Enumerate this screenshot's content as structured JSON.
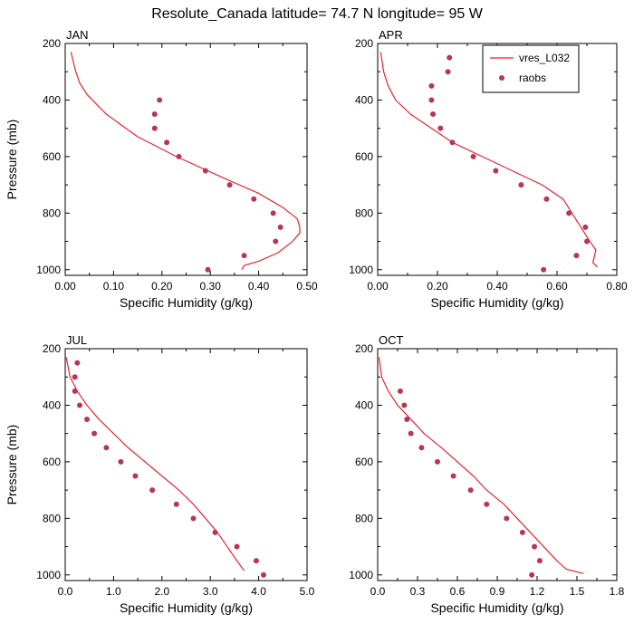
{
  "figure": {
    "title": "Resolute_Canada  latitude= 74.7 N longitude= 95 W"
  },
  "legend": {
    "entries": [
      {
        "name": "vres_L032",
        "style": "line",
        "color": "#e8232b"
      },
      {
        "name": "raobs",
        "style": "marker",
        "color": "#b8345a"
      }
    ],
    "placement": "top-right of APR panel"
  },
  "colors": {
    "model_line": "#e8232b",
    "obs_marker": "#b8345a",
    "axes": "#000000"
  },
  "chart_data": [
    {
      "type": "line",
      "panel": "JAN",
      "xlabel": "Specific Humidity (g/kg)",
      "ylabel": "Pressure (mb)",
      "xlim": [
        0,
        0.5
      ],
      "ylim": [
        200,
        1020
      ],
      "y_inverted": true,
      "xticks": [
        "0.00",
        "0.10",
        "0.20",
        "0.30",
        "0.40",
        "0.50"
      ],
      "xtick_values": [
        0,
        0.1,
        0.2,
        0.3,
        0.4,
        0.5
      ],
      "yticks": [
        "200",
        "400",
        "600",
        "800",
        "1000"
      ],
      "ytick_values": [
        200,
        400,
        600,
        800,
        1000
      ],
      "series": [
        {
          "name": "vres_L032",
          "points": [
            [
              0.012,
              230
            ],
            [
              0.016,
              260
            ],
            [
              0.022,
              300
            ],
            [
              0.03,
              340
            ],
            [
              0.045,
              380
            ],
            [
              0.085,
              450
            ],
            [
              0.15,
              530
            ],
            [
              0.23,
              600
            ],
            [
              0.32,
              670
            ],
            [
              0.4,
              730
            ],
            [
              0.45,
              780
            ],
            [
              0.48,
              820
            ],
            [
              0.485,
              850
            ],
            [
              0.485,
              870
            ],
            [
              0.47,
              900
            ],
            [
              0.44,
              940
            ],
            [
              0.4,
              970
            ],
            [
              0.37,
              985
            ],
            [
              0.365,
              1000
            ]
          ]
        },
        {
          "name": "raobs",
          "points": [
            [
              0.195,
              400
            ],
            [
              0.185,
              450
            ],
            [
              0.185,
              500
            ],
            [
              0.21,
              550
            ],
            [
              0.235,
              600
            ],
            [
              0.29,
              650
            ],
            [
              0.34,
              700
            ],
            [
              0.39,
              750
            ],
            [
              0.43,
              800
            ],
            [
              0.445,
              850
            ],
            [
              0.435,
              900
            ],
            [
              0.37,
              950
            ],
            [
              0.295,
              1000
            ]
          ]
        }
      ]
    },
    {
      "type": "line",
      "panel": "APR",
      "xlabel": "Specific Humidity (g/kg)",
      "ylabel": "",
      "xlim": [
        0,
        0.8
      ],
      "ylim": [
        200,
        1020
      ],
      "y_inverted": true,
      "xticks": [
        "0.00",
        "0.20",
        "0.40",
        "0.60",
        "0.80"
      ],
      "xtick_values": [
        0,
        0.2,
        0.4,
        0.6,
        0.8
      ],
      "yticks": [
        "200",
        "400",
        "600",
        "800",
        "1000"
      ],
      "ytick_values": [
        200,
        400,
        600,
        800,
        1000
      ],
      "series": [
        {
          "name": "vres_L032",
          "points": [
            [
              0.01,
              230
            ],
            [
              0.02,
              300
            ],
            [
              0.035,
              350
            ],
            [
              0.06,
              400
            ],
            [
              0.11,
              450
            ],
            [
              0.18,
              500
            ],
            [
              0.25,
              550
            ],
            [
              0.35,
              600
            ],
            [
              0.45,
              650
            ],
            [
              0.55,
              700
            ],
            [
              0.62,
              750
            ],
            [
              0.65,
              800
            ],
            [
              0.68,
              850
            ],
            [
              0.71,
              900
            ],
            [
              0.73,
              930
            ],
            [
              0.72,
              975
            ],
            [
              0.735,
              990
            ]
          ]
        },
        {
          "name": "raobs",
          "points": [
            [
              0.24,
              250
            ],
            [
              0.235,
              300
            ],
            [
              0.18,
              350
            ],
            [
              0.18,
              400
            ],
            [
              0.185,
              450
            ],
            [
              0.21,
              500
            ],
            [
              0.25,
              550
            ],
            [
              0.32,
              600
            ],
            [
              0.395,
              650
            ],
            [
              0.48,
              700
            ],
            [
              0.565,
              750
            ],
            [
              0.64,
              800
            ],
            [
              0.695,
              850
            ],
            [
              0.7,
              900
            ],
            [
              0.665,
              950
            ],
            [
              0.555,
              1000
            ]
          ]
        }
      ]
    },
    {
      "type": "line",
      "panel": "JUL",
      "xlabel": "Specific Humidity (g/kg)",
      "ylabel": "Pressure (mb)",
      "xlim": [
        0,
        5.0
      ],
      "ylim": [
        200,
        1020
      ],
      "y_inverted": true,
      "xticks": [
        "0.0",
        "1.0",
        "2.0",
        "3.0",
        "4.0",
        "5.0"
      ],
      "xtick_values": [
        0,
        1,
        2,
        3,
        4,
        5
      ],
      "yticks": [
        "200",
        "400",
        "600",
        "800",
        "1000"
      ],
      "ytick_values": [
        200,
        400,
        600,
        800,
        1000
      ],
      "series": [
        {
          "name": "vres_L032",
          "points": [
            [
              0.02,
              230
            ],
            [
              0.1,
              300
            ],
            [
              0.25,
              350
            ],
            [
              0.45,
              400
            ],
            [
              0.7,
              450
            ],
            [
              1.0,
              500
            ],
            [
              1.3,
              550
            ],
            [
              1.65,
              600
            ],
            [
              2.0,
              650
            ],
            [
              2.35,
              700
            ],
            [
              2.65,
              750
            ],
            [
              2.9,
              800
            ],
            [
              3.15,
              850
            ],
            [
              3.35,
              900
            ],
            [
              3.55,
              950
            ],
            [
              3.7,
              985
            ]
          ]
        },
        {
          "name": "raobs",
          "points": [
            [
              0.25,
              250
            ],
            [
              0.2,
              300
            ],
            [
              0.2,
              350
            ],
            [
              0.3,
              400
            ],
            [
              0.45,
              450
            ],
            [
              0.6,
              500
            ],
            [
              0.85,
              550
            ],
            [
              1.15,
              600
            ],
            [
              1.45,
              650
            ],
            [
              1.8,
              700
            ],
            [
              2.3,
              750
            ],
            [
              2.65,
              800
            ],
            [
              3.1,
              850
            ],
            [
              3.55,
              900
            ],
            [
              3.95,
              950
            ],
            [
              4.1,
              1000
            ]
          ]
        }
      ]
    },
    {
      "type": "line",
      "panel": "OCT",
      "xlabel": "Specific Humidity (g/kg)",
      "ylabel": "",
      "xlim": [
        0,
        1.8
      ],
      "ylim": [
        200,
        1020
      ],
      "y_inverted": true,
      "xticks": [
        "0.0",
        "0.3",
        "0.6",
        "0.9",
        "1.2",
        "1.5",
        "1.8"
      ],
      "xtick_values": [
        0,
        0.3,
        0.6,
        0.9,
        1.2,
        1.5,
        1.8
      ],
      "yticks": [
        "200",
        "400",
        "600",
        "800",
        "1000"
      ],
      "ytick_values": [
        200,
        400,
        600,
        800,
        1000
      ],
      "series": [
        {
          "name": "vres_L032",
          "points": [
            [
              0.01,
              230
            ],
            [
              0.03,
              300
            ],
            [
              0.08,
              350
            ],
            [
              0.15,
              400
            ],
            [
              0.25,
              450
            ],
            [
              0.35,
              500
            ],
            [
              0.48,
              550
            ],
            [
              0.6,
              600
            ],
            [
              0.72,
              650
            ],
            [
              0.82,
              700
            ],
            [
              0.95,
              750
            ],
            [
              1.05,
              800
            ],
            [
              1.15,
              850
            ],
            [
              1.25,
              900
            ],
            [
              1.35,
              950
            ],
            [
              1.42,
              980
            ],
            [
              1.55,
              995
            ]
          ]
        },
        {
          "name": "raobs",
          "points": [
            [
              0.17,
              350
            ],
            [
              0.2,
              400
            ],
            [
              0.22,
              450
            ],
            [
              0.25,
              500
            ],
            [
              0.33,
              550
            ],
            [
              0.45,
              600
            ],
            [
              0.57,
              650
            ],
            [
              0.7,
              700
            ],
            [
              0.82,
              750
            ],
            [
              0.97,
              800
            ],
            [
              1.09,
              850
            ],
            [
              1.18,
              900
            ],
            [
              1.22,
              950
            ],
            [
              1.16,
              1000
            ]
          ]
        }
      ]
    }
  ]
}
